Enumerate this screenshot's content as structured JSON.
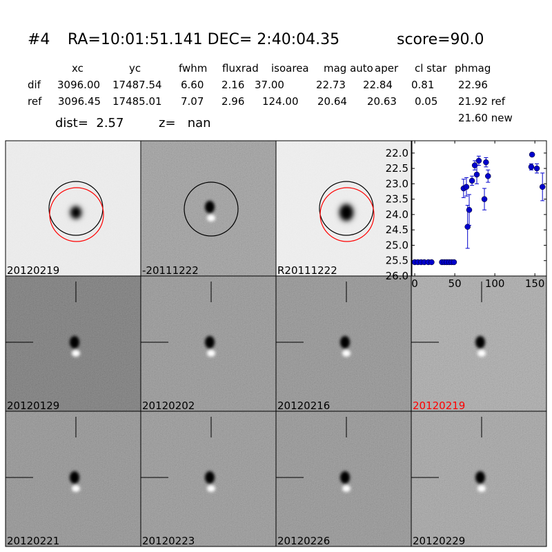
{
  "header": {
    "id": "#4",
    "coords": "RA=10:01:51.141 DEC= 2:40:04.35",
    "score": "score=90.0"
  },
  "table": {
    "columns": [
      "xc",
      "yc",
      "fwhm",
      "fluxrad",
      "isoarea",
      "mag auto",
      "aper",
      "cl star",
      "phmag"
    ],
    "rows": [
      [
        "dif",
        "3096.00",
        "17487.54",
        "6.60",
        "2.16",
        "37.00",
        "22.73",
        "22.84",
        "0.81",
        "22.96"
      ],
      [
        "ref",
        "3096.45",
        "17485.01",
        "7.07",
        "2.96",
        "124.00",
        "20.64",
        "20.63",
        "0.05",
        "21.92 ref"
      ]
    ],
    "extra": "21.60 new"
  },
  "dist": "dist=  2.57",
  "z": "z=   nan",
  "panels": [
    {
      "label": "20120219"
    },
    {
      "label": "-20111222"
    },
    {
      "label": "R20111222"
    },
    {
      "label": "20120129"
    },
    {
      "label": "20120202"
    },
    {
      "label": "20120216"
    },
    {
      "label": "20120219",
      "color": "#ff0000"
    },
    {
      "label": "20120221"
    },
    {
      "label": "20120223"
    },
    {
      "label": "20120226"
    },
    {
      "label": "20120229"
    }
  ],
  "chart_data": {
    "type": "scatter",
    "xlim": [
      -3.5,
      164.5
    ],
    "xticks": [
      0,
      50,
      100,
      150
    ],
    "ylim": [
      26.0,
      21.6
    ],
    "yticks": [
      {
        "value": 22.0,
        "label": "22.0"
      },
      {
        "value": 22.5,
        "label": "22.5"
      },
      {
        "value": 23.0,
        "label": "23.0"
      },
      {
        "value": 23.5,
        "label": "23.5"
      },
      {
        "value": 24.0,
        "label": "24.0"
      },
      {
        "value": 24.5,
        "label": "24.5"
      },
      {
        "value": 25.0,
        "label": "25.0"
      },
      {
        "value": 25.5,
        "label": "25.5"
      },
      {
        "value": 26.0,
        "label": "26.0"
      }
    ],
    "series": [
      {
        "color": "#0000cc",
        "x": [
          61,
          64.5,
          66,
          68,
          71.5,
          75,
          77.5,
          80,
          87,
          89,
          91.5,
          146.5,
          145.5,
          152.5,
          159.5
        ],
        "values": [
          23.15,
          23.1,
          24.4,
          23.85,
          22.9,
          22.4,
          22.7,
          22.25,
          23.5,
          22.3,
          22.75,
          22.05,
          22.45,
          22.5,
          23.1
        ],
        "errors": [
          0.3,
          0.3,
          0.7,
          0.5,
          0.15,
          0.15,
          0.3,
          0.15,
          0.35,
          0.15,
          0.2,
          0.05,
          0.1,
          0.15,
          0.45
        ]
      },
      {
        "color": "#0000cc",
        "x": [
          0,
          4,
          8,
          12,
          17,
          21,
          34,
          37,
          40,
          43,
          46,
          49
        ],
        "values": [
          25.55,
          25.55,
          25.55,
          25.55,
          25.55,
          25.55,
          25.55,
          25.55,
          25.55,
          25.55,
          25.55,
          25.55
        ]
      }
    ]
  }
}
